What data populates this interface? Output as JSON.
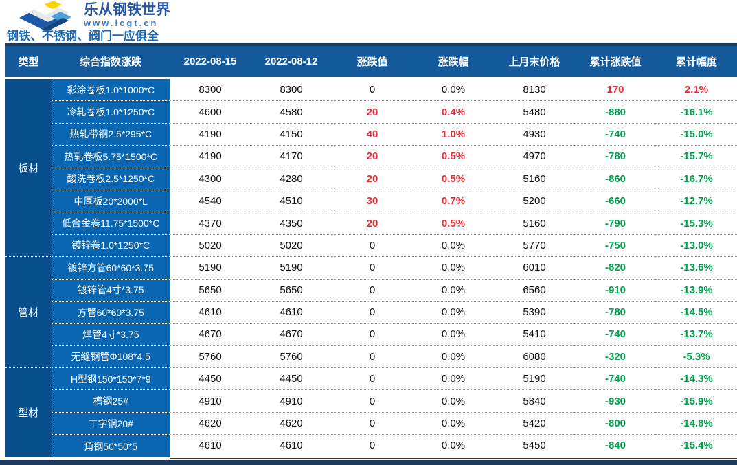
{
  "brand": {
    "title": "乐从钢铁世界",
    "url": "www.lcgt.cn",
    "tagline": "钢铁、不锈钢、阀门一应俱全"
  },
  "colors": {
    "header_blue": "#14599A",
    "item_blue": "#0A66B0",
    "type_blue": "#084F8C",
    "navy_strip": "#1C3A5E",
    "up_red": "#EE2B34",
    "down_green": "#00A14E"
  },
  "table": {
    "headers": [
      "类型",
      "综合指数涨跌",
      "2022-08-15",
      "2022-08-12",
      "涨跌值",
      "涨跌幅",
      "上月末价格",
      "累计涨跌值",
      "累计幅度"
    ],
    "groups": [
      {
        "type": "板材",
        "rows": [
          {
            "name": "彩涂卷板1.0*1000*C",
            "p1": "8300",
            "p2": "8300",
            "chg": "0",
            "chgPct": "0.0%",
            "lastMonth": "8130",
            "cum": "170",
            "cumPct": "2.1%"
          },
          {
            "name": "冷轧卷板1.0*1250*C",
            "p1": "4600",
            "p2": "4580",
            "chg": "20",
            "chgPct": "0.4%",
            "lastMonth": "5480",
            "cum": "-880",
            "cumPct": "-16.1%"
          },
          {
            "name": "热轧带钢2.5*295*C",
            "p1": "4190",
            "p2": "4150",
            "chg": "40",
            "chgPct": "1.0%",
            "lastMonth": "4930",
            "cum": "-740",
            "cumPct": "-15.0%"
          },
          {
            "name": "热轧卷板5.75*1500*C",
            "p1": "4190",
            "p2": "4170",
            "chg": "20",
            "chgPct": "0.5%",
            "lastMonth": "4970",
            "cum": "-780",
            "cumPct": "-15.7%"
          },
          {
            "name": "酸洗卷板2.5*1250*C",
            "p1": "4300",
            "p2": "4280",
            "chg": "20",
            "chgPct": "0.5%",
            "lastMonth": "5160",
            "cum": "-860",
            "cumPct": "-16.7%"
          },
          {
            "name": "中厚板20*2000*L",
            "p1": "4540",
            "p2": "4510",
            "chg": "30",
            "chgPct": "0.7%",
            "lastMonth": "5200",
            "cum": "-660",
            "cumPct": "-12.7%"
          },
          {
            "name": "低合金卷11.75*1500*C",
            "p1": "4370",
            "p2": "4350",
            "chg": "20",
            "chgPct": "0.5%",
            "lastMonth": "5160",
            "cum": "-790",
            "cumPct": "-15.3%"
          },
          {
            "name": "镀锌卷1.0*1250*C",
            "p1": "5020",
            "p2": "5020",
            "chg": "0",
            "chgPct": "0.0%",
            "lastMonth": "5770",
            "cum": "-750",
            "cumPct": "-13.0%"
          }
        ]
      },
      {
        "type": "管材",
        "rows": [
          {
            "name": "镀锌方管60*60*3.75",
            "p1": "5190",
            "p2": "5190",
            "chg": "0",
            "chgPct": "0.0%",
            "lastMonth": "6010",
            "cum": "-820",
            "cumPct": "-13.6%"
          },
          {
            "name": "镀锌管4寸*3.75",
            "p1": "5650",
            "p2": "5650",
            "chg": "0",
            "chgPct": "0.0%",
            "lastMonth": "6560",
            "cum": "-910",
            "cumPct": "-13.9%"
          },
          {
            "name": "方管60*60*3.75",
            "p1": "4610",
            "p2": "4610",
            "chg": "0",
            "chgPct": "0.0%",
            "lastMonth": "5390",
            "cum": "-780",
            "cumPct": "-14.5%"
          },
          {
            "name": "焊管4寸*3.75",
            "p1": "4670",
            "p2": "4670",
            "chg": "0",
            "chgPct": "0.0%",
            "lastMonth": "5410",
            "cum": "-740",
            "cumPct": "-13.7%"
          },
          {
            "name": "无缝钢管Φ108*4.5",
            "p1": "5760",
            "p2": "5760",
            "chg": "0",
            "chgPct": "0.0%",
            "lastMonth": "6080",
            "cum": "-320",
            "cumPct": "-5.3%"
          }
        ]
      },
      {
        "type": "型材",
        "rows": [
          {
            "name": "H型钢150*150*7*9",
            "p1": "4450",
            "p2": "4450",
            "chg": "0",
            "chgPct": "0.0%",
            "lastMonth": "5190",
            "cum": "-740",
            "cumPct": "-14.3%"
          },
          {
            "name": "槽钢25#",
            "p1": "4910",
            "p2": "4910",
            "chg": "0",
            "chgPct": "0.0%",
            "lastMonth": "5840",
            "cum": "-930",
            "cumPct": "-15.9%"
          },
          {
            "name": "工字钢20#",
            "p1": "4620",
            "p2": "4620",
            "chg": "0",
            "chgPct": "0.0%",
            "lastMonth": "5420",
            "cum": "-800",
            "cumPct": "-14.8%"
          },
          {
            "name": "角钢50*50*5",
            "p1": "4610",
            "p2": "4610",
            "chg": "0",
            "chgPct": "0.0%",
            "lastMonth": "5450",
            "cum": "-840",
            "cumPct": "-15.4%"
          }
        ]
      }
    ]
  }
}
